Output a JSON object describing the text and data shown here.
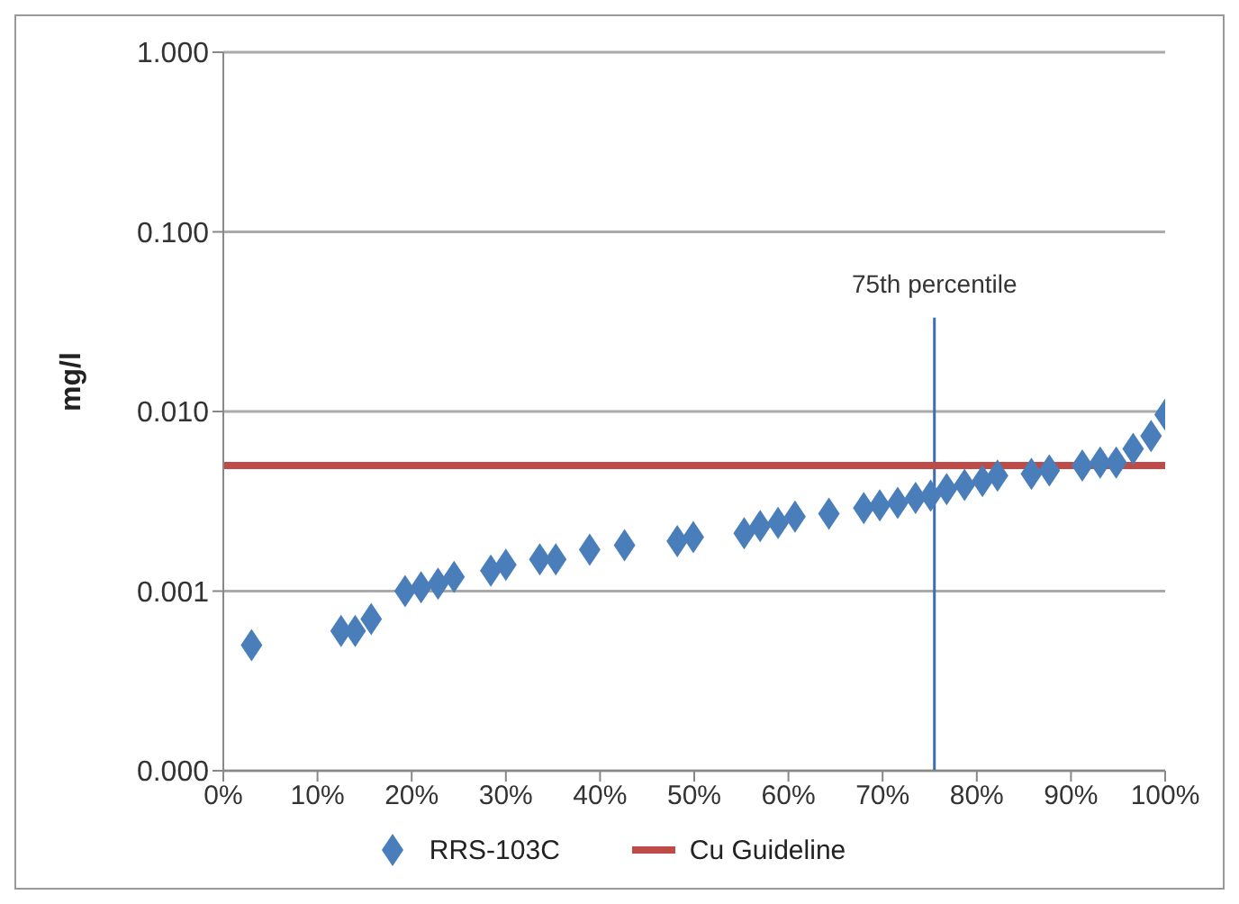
{
  "chart_data": {
    "type": "scatter",
    "ylabel": "mg/l",
    "log": "y",
    "grid": "y",
    "legend": "bottom",
    "xlim": [
      0,
      100
    ],
    "xticks": [
      {
        "value": 0,
        "label": "0%"
      },
      {
        "value": 10,
        "label": "10%"
      },
      {
        "value": 20,
        "label": "20%"
      },
      {
        "value": 30,
        "label": "30%"
      },
      {
        "value": 40,
        "label": "40%"
      },
      {
        "value": 50,
        "label": "50%"
      },
      {
        "value": 60,
        "label": "60%"
      },
      {
        "value": 70,
        "label": "70%"
      },
      {
        "value": 80,
        "label": "80%"
      },
      {
        "value": 90,
        "label": "90%"
      },
      {
        "value": 100,
        "label": "100%"
      }
    ],
    "ylim": [
      0.0001,
      1
    ],
    "yticks": [
      {
        "value": 0.0001,
        "label": "0.000"
      },
      {
        "value": 0.001,
        "label": "0.001"
      },
      {
        "value": 0.01,
        "label": "0.010"
      },
      {
        "value": 0.1,
        "label": "0.100"
      },
      {
        "value": 1,
        "label": "1.000"
      }
    ],
    "series": [
      {
        "name": "RRS-103C",
        "marker": "diamond",
        "color": "#4a7ebb",
        "x": [
          3,
          12.5,
          14,
          15.7,
          19.3,
          21,
          22.8,
          24.5,
          28.4,
          30,
          33.6,
          35.3,
          38.9,
          42.6,
          48.2,
          49.9,
          55.3,
          57,
          58.9,
          60.7,
          64.3,
          68,
          69.7,
          71.6,
          73.5,
          75.1,
          76.8,
          78.7,
          80.6,
          82.2,
          85.8,
          87.7,
          91.2,
          93.1,
          94.8,
          96.6,
          98.5,
          100
        ],
        "values": [
          0.0005,
          0.0006,
          0.0006,
          0.0007,
          0.001,
          0.00105,
          0.0011,
          0.0012,
          0.0013,
          0.0014,
          0.0015,
          0.0015,
          0.0017,
          0.0018,
          0.0019,
          0.002,
          0.0021,
          0.0023,
          0.0024,
          0.0026,
          0.0027,
          0.0029,
          0.003,
          0.0031,
          0.0033,
          0.0034,
          0.0037,
          0.0039,
          0.0041,
          0.0044,
          0.0045,
          0.0047,
          0.005,
          0.0052,
          0.0052,
          0.0062,
          0.0073,
          0.0096
        ]
      },
      {
        "name": "Cu Guideline",
        "type": "line",
        "marker": "none",
        "color": "#be4b48",
        "x": [
          0,
          100
        ],
        "values": [
          0.005,
          0.005
        ]
      }
    ],
    "ref_lines": [
      {
        "axis": "x",
        "value": 75.5,
        "label": "75th percentile",
        "color": "#3d6fb0"
      }
    ]
  }
}
